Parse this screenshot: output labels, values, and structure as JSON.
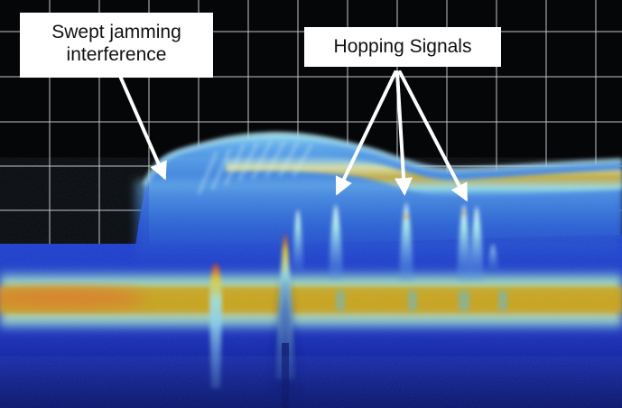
{
  "callouts": {
    "swept_line1": "Swept jamming",
    "swept_line2": "interference",
    "hopping": "Hopping Signals"
  },
  "colors": {
    "background": "#050608",
    "grid": "#e6e6e6",
    "noise_floor": "#1327b8",
    "signal_band": "#c9a315",
    "signal_peak": "#e2551e",
    "arrow": "#ffffff"
  }
}
